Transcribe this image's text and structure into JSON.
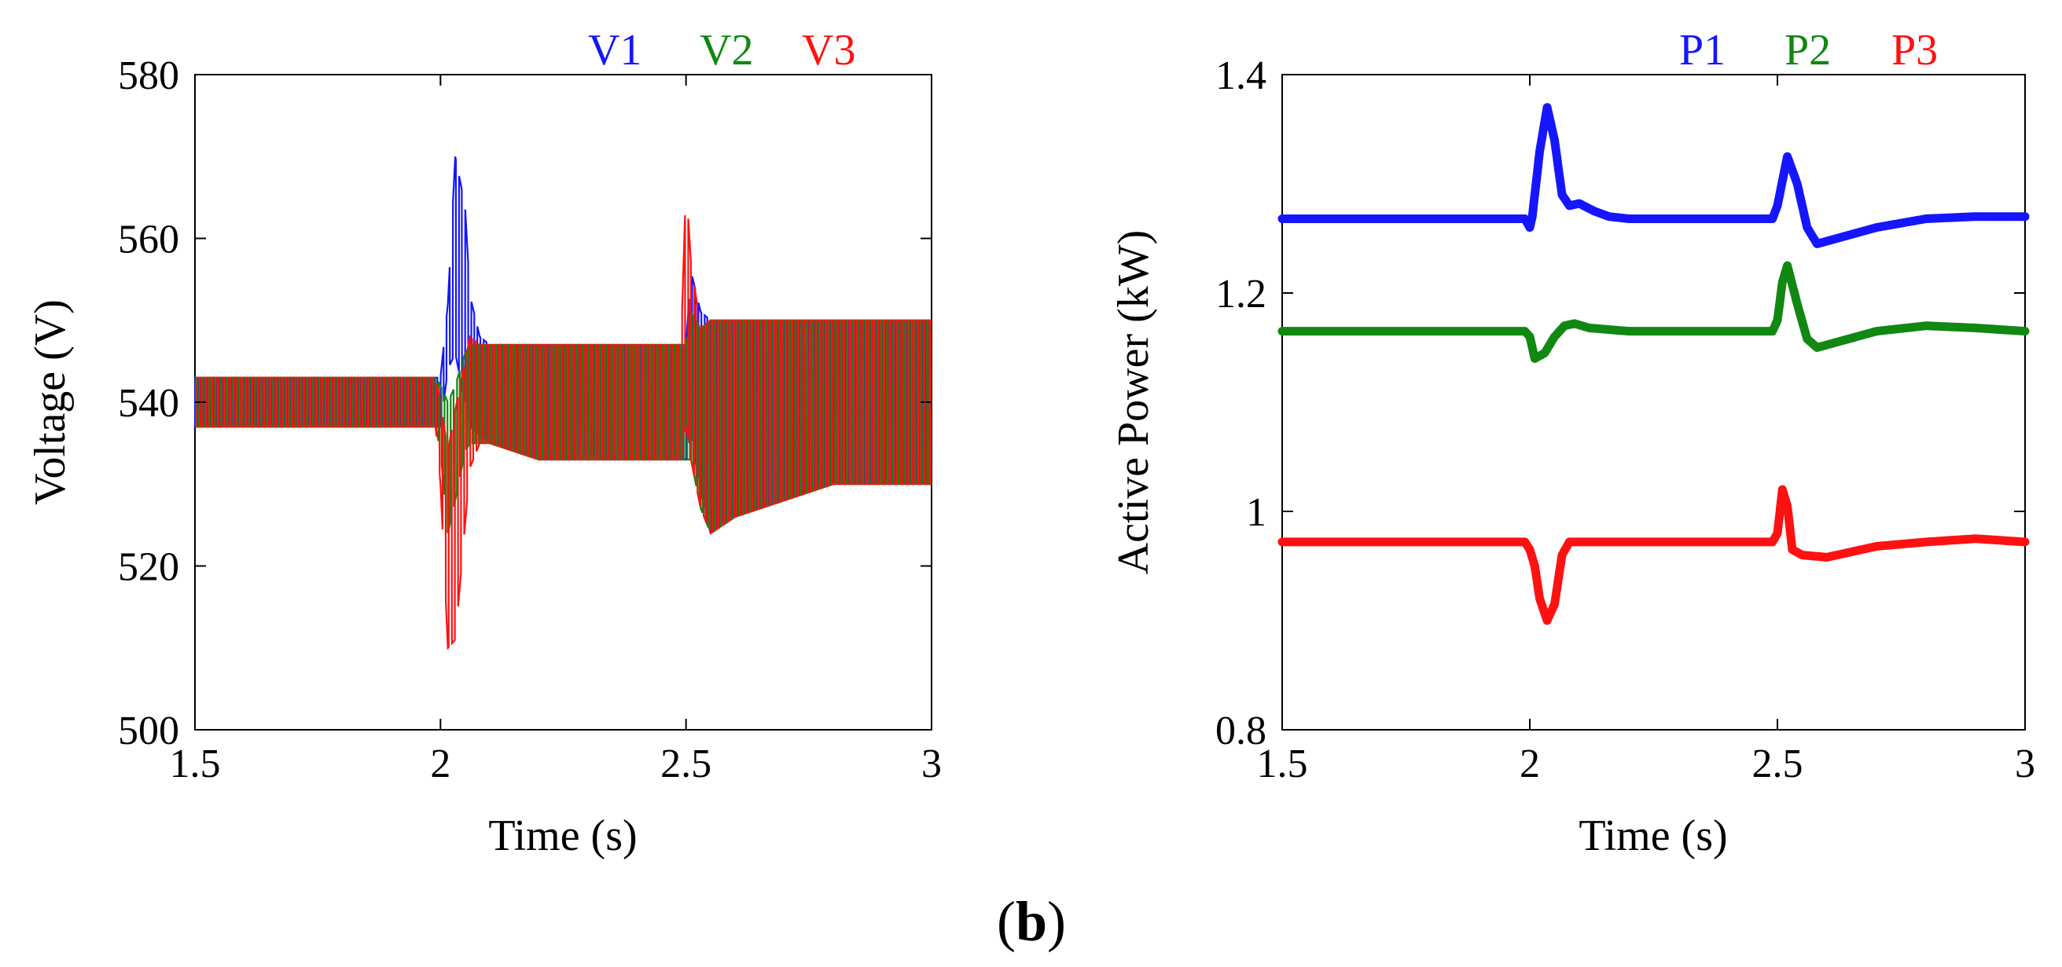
{
  "caption": {
    "open": "(",
    "letter": "b",
    "close": ")"
  },
  "chart_data": [
    {
      "type": "line",
      "title": "",
      "xlabel": "Time (s)",
      "ylabel": "Voltage (V)",
      "xlim": [
        1.5,
        3
      ],
      "ylim": [
        500,
        580
      ],
      "xticks": [
        1.5,
        2,
        2.5,
        3
      ],
      "xtick_labels": [
        "1.5",
        "2",
        "2.5",
        "3"
      ],
      "yticks": [
        500,
        520,
        540,
        560,
        580
      ],
      "ytick_labels": [
        "500",
        "520",
        "540",
        "560",
        "580"
      ],
      "grid": false,
      "legend_position": "top-right, above plot",
      "series": [
        {
          "name": "V1",
          "color": "#1515ff",
          "x": [
            1.5,
            1.7,
            1.99,
            2.0,
            2.015,
            2.03,
            2.05,
            2.06,
            2.08,
            2.1,
            2.2,
            2.3,
            2.4,
            2.49,
            2.5,
            2.51,
            2.53,
            2.55,
            2.6,
            2.7,
            2.8,
            2.9,
            3.0
          ],
          "center": [
            540,
            540,
            540,
            540,
            548,
            558,
            552,
            545,
            542,
            541,
            540,
            540,
            540,
            540,
            540,
            546,
            540,
            537,
            538,
            539,
            540,
            540,
            540
          ],
          "amp": [
            3,
            3,
            3,
            3,
            4,
            12,
            12,
            8,
            6,
            6,
            7,
            7,
            7,
            7,
            7,
            10,
            11,
            13,
            12,
            11,
            10,
            10,
            10
          ]
        },
        {
          "name": "V2",
          "color": "#118811",
          "x": [
            1.5,
            1.7,
            1.99,
            2.0,
            2.015,
            2.03,
            2.05,
            2.06,
            2.08,
            2.1,
            2.2,
            2.3,
            2.4,
            2.49,
            2.5,
            2.51,
            2.53,
            2.55,
            2.6,
            2.7,
            2.8,
            2.9,
            3.0
          ],
          "center": [
            540,
            540,
            540,
            538,
            532,
            535,
            540,
            541,
            541,
            541,
            540,
            540,
            540,
            540,
            540,
            542,
            538,
            537,
            538,
            539,
            540,
            540,
            540
          ],
          "amp": [
            3,
            3,
            3,
            4,
            8,
            7,
            6,
            6,
            6,
            6,
            7,
            7,
            7,
            7,
            7,
            9,
            11,
            13,
            12,
            11,
            10,
            10,
            10
          ]
        },
        {
          "name": "V3",
          "color": "#ff1111",
          "x": [
            1.5,
            1.7,
            1.99,
            2.0,
            2.015,
            2.03,
            2.05,
            2.06,
            2.08,
            2.1,
            2.2,
            2.3,
            2.4,
            2.49,
            2.5,
            2.51,
            2.53,
            2.55,
            2.6,
            2.7,
            2.8,
            2.9,
            3.0
          ],
          "center": [
            540,
            540,
            540,
            535,
            522,
            525,
            535,
            540,
            541,
            541,
            540,
            540,
            540,
            540,
            552,
            545,
            538,
            537,
            538,
            539,
            540,
            540,
            540
          ],
          "amp": [
            3,
            3,
            3,
            5,
            12,
            14,
            10,
            8,
            6,
            6,
            7,
            7,
            7,
            7,
            15,
            12,
            11,
            13,
            12,
            11,
            10,
            10,
            10
          ]
        }
      ]
    },
    {
      "type": "line",
      "title": "",
      "xlabel": "Time (s)",
      "ylabel": "Active Power (kW)",
      "xlim": [
        1.5,
        3
      ],
      "ylim": [
        0.8,
        1.4
      ],
      "xticks": [
        1.5,
        2,
        2.5,
        3
      ],
      "xtick_labels": [
        "1.5",
        "2",
        "2.5",
        "3"
      ],
      "yticks": [
        0.8,
        1,
        1.2,
        1.4
      ],
      "ytick_labels": [
        "0.8",
        "1",
        "1.2",
        "1.4"
      ],
      "grid": false,
      "legend_position": "top-right, above plot",
      "series": [
        {
          "name": "P1",
          "color": "#1515ff",
          "x": [
            1.5,
            1.95,
            1.99,
            2.0,
            2.005,
            2.02,
            2.035,
            2.05,
            2.065,
            2.08,
            2.1,
            2.13,
            2.16,
            2.2,
            2.3,
            2.49,
            2.5,
            2.52,
            2.54,
            2.56,
            2.58,
            2.62,
            2.7,
            2.8,
            2.9,
            3.0
          ],
          "y": [
            1.268,
            1.268,
            1.268,
            1.26,
            1.27,
            1.33,
            1.37,
            1.34,
            1.29,
            1.28,
            1.282,
            1.275,
            1.27,
            1.268,
            1.268,
            1.268,
            1.28,
            1.325,
            1.3,
            1.26,
            1.245,
            1.25,
            1.26,
            1.268,
            1.27,
            1.27
          ]
        },
        {
          "name": "P2",
          "color": "#118811",
          "x": [
            1.5,
            1.95,
            1.99,
            2.0,
            2.01,
            2.03,
            2.05,
            2.07,
            2.09,
            2.12,
            2.2,
            2.3,
            2.49,
            2.5,
            2.51,
            2.52,
            2.54,
            2.56,
            2.58,
            2.62,
            2.7,
            2.8,
            2.9,
            3.0
          ],
          "y": [
            1.165,
            1.165,
            1.165,
            1.16,
            1.14,
            1.145,
            1.16,
            1.17,
            1.172,
            1.168,
            1.165,
            1.165,
            1.165,
            1.175,
            1.21,
            1.225,
            1.19,
            1.158,
            1.15,
            1.155,
            1.165,
            1.17,
            1.168,
            1.165
          ]
        },
        {
          "name": "P3",
          "color": "#ff1111",
          "x": [
            1.5,
            1.95,
            1.99,
            2.0,
            2.01,
            2.02,
            2.035,
            2.05,
            2.065,
            2.08,
            2.1,
            2.2,
            2.3,
            2.49,
            2.5,
            2.51,
            2.52,
            2.53,
            2.55,
            2.6,
            2.7,
            2.8,
            2.9,
            3.0
          ],
          "y": [
            0.972,
            0.972,
            0.972,
            0.965,
            0.95,
            0.92,
            0.9,
            0.915,
            0.96,
            0.972,
            0.972,
            0.972,
            0.972,
            0.972,
            0.98,
            1.02,
            1.005,
            0.965,
            0.96,
            0.958,
            0.968,
            0.972,
            0.975,
            0.972
          ]
        }
      ]
    }
  ]
}
